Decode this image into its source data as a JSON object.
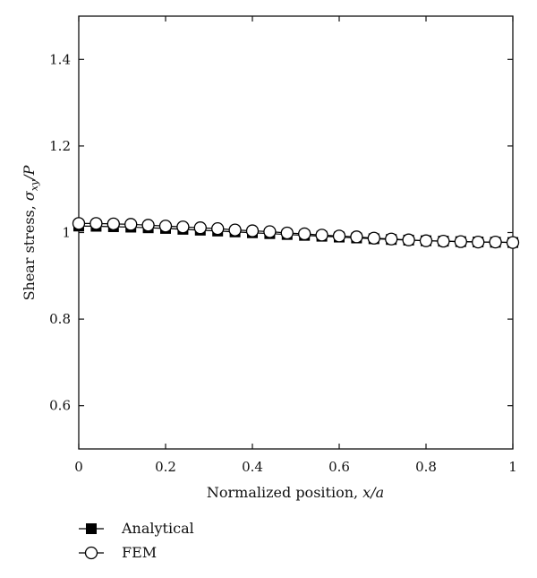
{
  "chart_data": {
    "type": "line",
    "title": "",
    "xlabel": "Normalized position, x/a",
    "xlabel_parts": {
      "text": "Normalized position, ",
      "math": "x/a"
    },
    "ylabel": "Shear stress, σ_xy/P",
    "ylabel_parts": {
      "text": "Shear stress, ",
      "sigma": "σ",
      "sub": "xy",
      "rest": "/P"
    },
    "xlim": [
      0,
      1
    ],
    "ylim": [
      0.5,
      1.5
    ],
    "x_ticks": [
      "0",
      "0.2",
      "0.4",
      "0.6",
      "0.8",
      "1"
    ],
    "x_tick_values": [
      0,
      0.2,
      0.4,
      0.6,
      0.8,
      1.0
    ],
    "y_ticks": [
      "0.6",
      "0.8",
      "1",
      "1.2",
      "1.4"
    ],
    "y_tick_values": [
      0.6,
      0.8,
      1.0,
      1.2,
      1.4
    ],
    "grid": false,
    "legend_position": "bottom-left, below plot",
    "series": [
      {
        "name": "Analytical",
        "marker": "filled-square",
        "color": "#000000",
        "x": [
          0,
          0.04,
          0.08,
          0.12,
          0.16,
          0.2,
          0.24,
          0.28,
          0.32,
          0.36,
          0.4,
          0.44,
          0.48,
          0.52,
          0.56,
          0.6,
          0.64,
          0.68,
          0.72,
          0.76,
          0.8,
          0.84,
          0.88,
          0.92,
          0.96,
          1.0
        ],
        "y": [
          1.015,
          1.0145,
          1.0135,
          1.0125,
          1.011,
          1.0095,
          1.0075,
          1.0055,
          1.0035,
          1.0015,
          0.9995,
          0.9975,
          0.9955,
          0.9935,
          0.9915,
          0.9895,
          0.9875,
          0.9857,
          0.984,
          0.9825,
          0.981,
          0.98,
          0.979,
          0.9782,
          0.9776,
          0.977
        ]
      },
      {
        "name": "FEM",
        "marker": "open-circle",
        "color": "#000000",
        "x": [
          0,
          0.04,
          0.08,
          0.12,
          0.16,
          0.2,
          0.24,
          0.28,
          0.32,
          0.36,
          0.4,
          0.44,
          0.48,
          0.52,
          0.56,
          0.6,
          0.64,
          0.68,
          0.72,
          0.76,
          0.8,
          0.84,
          0.88,
          0.92,
          0.96,
          1.0
        ],
        "y": [
          1.021,
          1.021,
          1.02,
          1.019,
          1.017,
          1.015,
          1.013,
          1.011,
          1.009,
          1.006,
          1.004,
          1.002,
          0.999,
          0.997,
          0.994,
          0.992,
          0.99,
          0.987,
          0.985,
          0.983,
          0.981,
          0.98,
          0.979,
          0.978,
          0.978,
          0.977
        ]
      }
    ]
  }
}
